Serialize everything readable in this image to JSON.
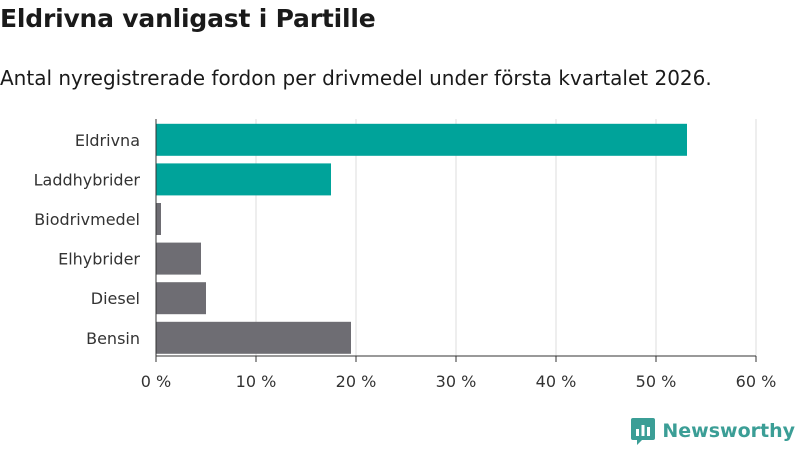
{
  "chart_data": {
    "type": "bar",
    "orientation": "horizontal",
    "title": "Eldrivna vanligast i Partille",
    "subtitle": "Antal nyregistrerade fordon per drivmedel under första kvartalet 2026.",
    "categories": [
      "Eldrivna",
      "Laddhybrider",
      "Biodrivmedel",
      "Elhybrider",
      "Diesel",
      "Bensin"
    ],
    "values": [
      53.1,
      17.5,
      0.5,
      4.5,
      5.0,
      19.5
    ],
    "bar_colors": [
      "#00a39a",
      "#00a39a",
      "#6e6d73",
      "#6e6d73",
      "#6e6d73",
      "#6e6d73"
    ],
    "xlim": [
      0,
      60
    ],
    "xticks": [
      0,
      10,
      20,
      30,
      40,
      50,
      60
    ],
    "xtick_labels": [
      "0 %",
      "10 %",
      "20 %",
      "30 %",
      "40 %",
      "50 %",
      "60 %"
    ],
    "grid": "vertical",
    "legend": "none"
  },
  "brand": {
    "name": "Newsworthy",
    "color": "#3b9e96",
    "icon": "newsworthy-logo-icon"
  }
}
